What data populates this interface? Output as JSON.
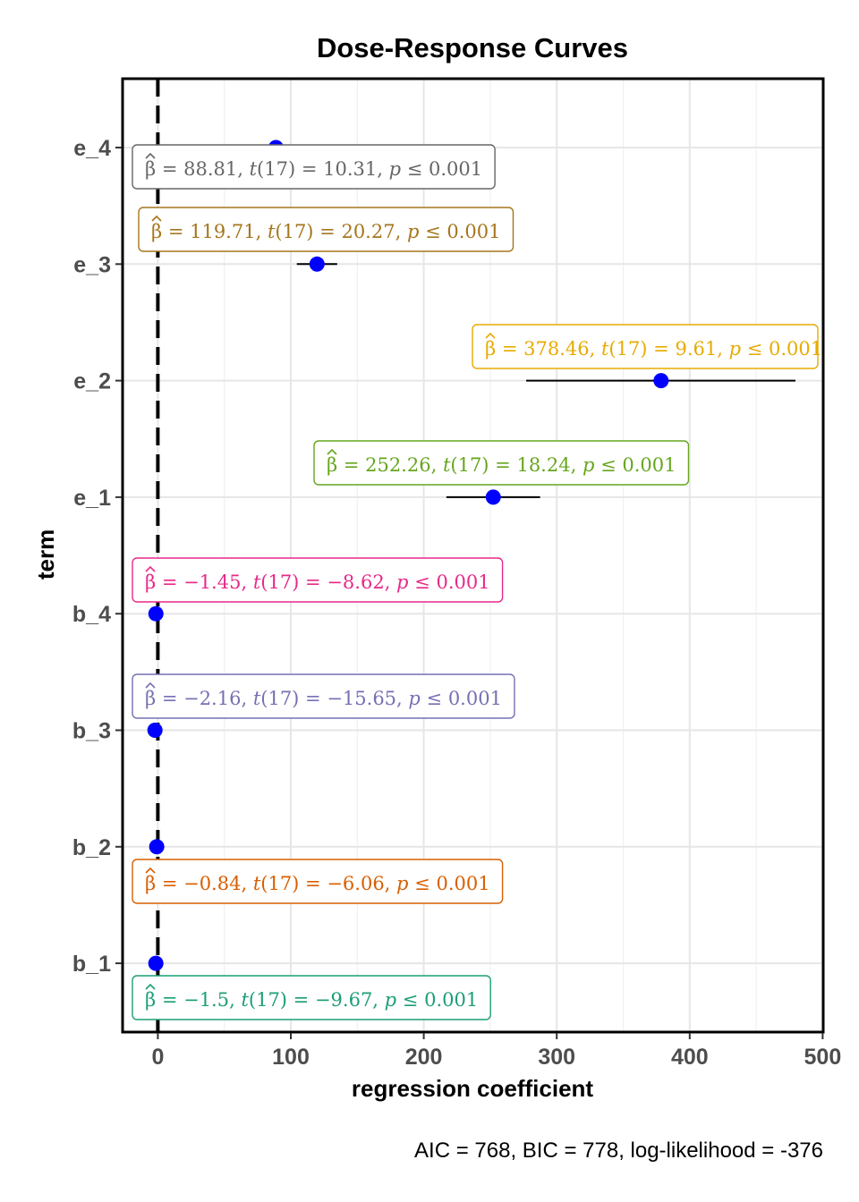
{
  "chart_data": {
    "type": "scatter",
    "title": "Dose-Response Curves",
    "xlabel": "regression coefficient",
    "ylabel": "term",
    "xlim": [
      -27,
      500
    ],
    "xticks": [
      0,
      100,
      200,
      300,
      400,
      500
    ],
    "grid": true,
    "reference_line_x": 0,
    "caption": "AIC = 768, BIC = 778, log-likelihood = -376",
    "terms": [
      {
        "term": "e_4",
        "estimate": 88.81,
        "ci_low": 72.0,
        "ci_high": 105.6,
        "label_beta": "88.81",
        "label_t": "10.31",
        "label_p": "0.001",
        "color": "#666666"
      },
      {
        "term": "e_3",
        "estimate": 119.71,
        "ci_low": 104.5,
        "ci_high": 134.9,
        "label_beta": "119.71",
        "label_t": "20.27",
        "label_p": "0.001",
        "color": "#a6761d"
      },
      {
        "term": "e_2",
        "estimate": 378.46,
        "ci_low": 277.0,
        "ci_high": 479.5,
        "label_beta": "378.46",
        "label_t": "9.61",
        "label_p": "0.001",
        "color": "#e6ab02"
      },
      {
        "term": "e_1",
        "estimate": 252.26,
        "ci_low": 217.0,
        "ci_high": 287.5,
        "label_beta": "252.26",
        "label_t": "18.24",
        "label_p": "0.001",
        "color": "#66a61e"
      },
      {
        "term": "b_4",
        "estimate": -1.45,
        "ci_low": -1.8,
        "ci_high": -1.1,
        "label_beta": "−1.45",
        "label_t": "−8.62",
        "label_p": "0.001",
        "color": "#e7298a"
      },
      {
        "term": "b_3",
        "estimate": -2.16,
        "ci_low": -2.4,
        "ci_high": -1.9,
        "label_beta": "−2.16",
        "label_t": "−15.65",
        "label_p": "0.001",
        "color": "#7570b3"
      },
      {
        "term": "b_2",
        "estimate": -0.84,
        "ci_low": -1.1,
        "ci_high": -0.6,
        "label_beta": "−0.84",
        "label_t": "−6.06",
        "label_p": "0.001",
        "color": "#d95f02"
      },
      {
        "term": "b_1",
        "estimate": -1.5,
        "ci_low": -1.8,
        "ci_high": -1.2,
        "label_beta": "−1.5",
        "label_t": "−9.67",
        "label_p": "0.001",
        "color": "#1b9e77"
      }
    ],
    "label_tokens": {
      "beta": "β",
      "t": "t",
      "df": "17",
      "p": "p",
      "eq": "=",
      "le": "≤"
    },
    "point_color": "#0000ff"
  }
}
